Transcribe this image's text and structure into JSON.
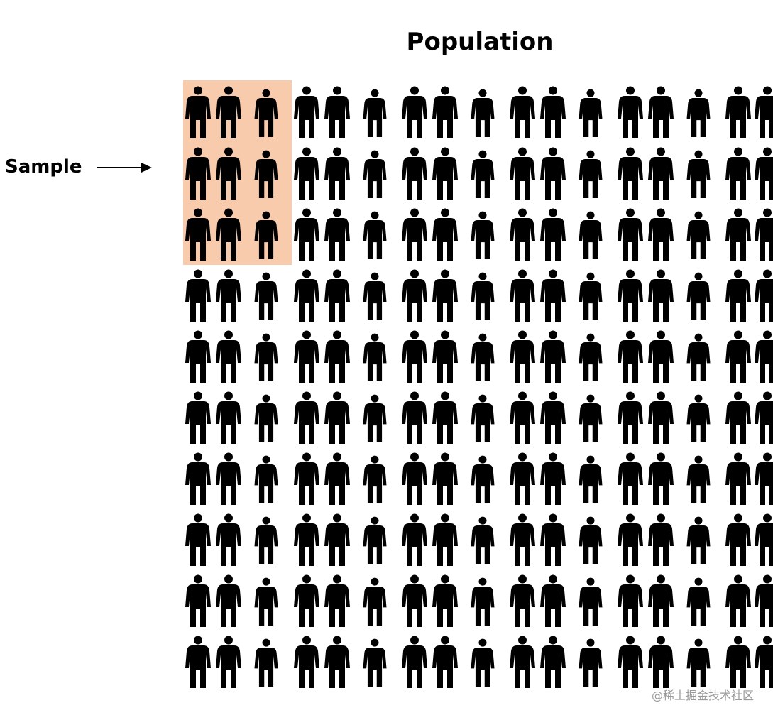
{
  "diagram": {
    "title": "Population",
    "sample_label": "Sample",
    "watermark": "@稀土掘金技术社区",
    "colors": {
      "figure": "#000000",
      "sample_highlight": "#f8cbad",
      "watermark": "#9a9a9a"
    },
    "icon_name": "person-icon",
    "population_grid": {
      "rows": 10,
      "columns": 17
    },
    "sample_grid": {
      "rows": 3,
      "columns": 3
    }
  }
}
